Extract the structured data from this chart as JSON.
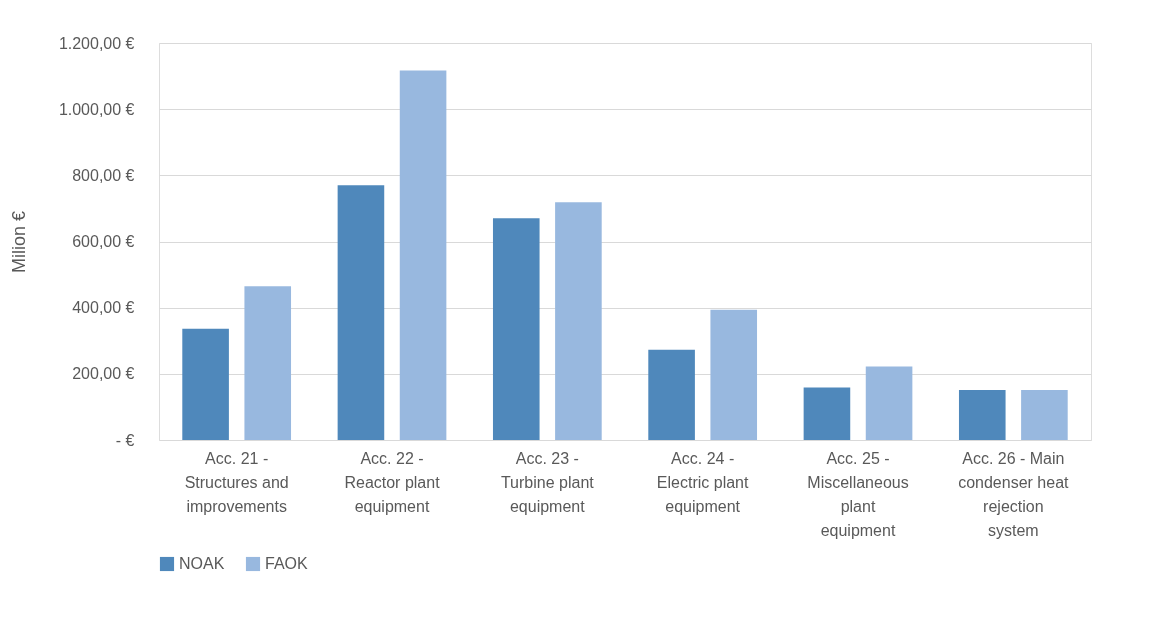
{
  "chart_data": {
    "type": "bar",
    "ylabel": "Milion €",
    "categories": [
      "Acc. 21 - Structures and improvements",
      "Acc. 22 - Reactor plant equipment",
      "Acc. 23 - Turbine plant equipment",
      "Acc. 24 - Electric plant equipment",
      "Acc. 25 - Miscellaneous plant equipment",
      "Acc. 26 - Main condenser heat rejection system"
    ],
    "series": [
      {
        "name": "NOAK",
        "color": "#4f88bb",
        "values": [
          336,
          770,
          670,
          273,
          159,
          151
        ]
      },
      {
        "name": "FAOK",
        "color": "#98b8df",
        "values": [
          465,
          1117,
          719,
          394,
          222,
          151
        ]
      }
    ],
    "ylim": [
      0,
      1200
    ],
    "yticks": [
      {
        "value": 0,
        "label": "-   €"
      },
      {
        "value": 200,
        "label": "200,00 €"
      },
      {
        "value": 400,
        "label": "400,00 €"
      },
      {
        "value": 600,
        "label": "600,00 €"
      },
      {
        "value": 800,
        "label": "800,00 €"
      },
      {
        "value": 1000,
        "label": "1.000,00 €"
      },
      {
        "value": 1200,
        "label": "1.200,00 €"
      }
    ],
    "grid": "y",
    "legend": "bottom"
  }
}
